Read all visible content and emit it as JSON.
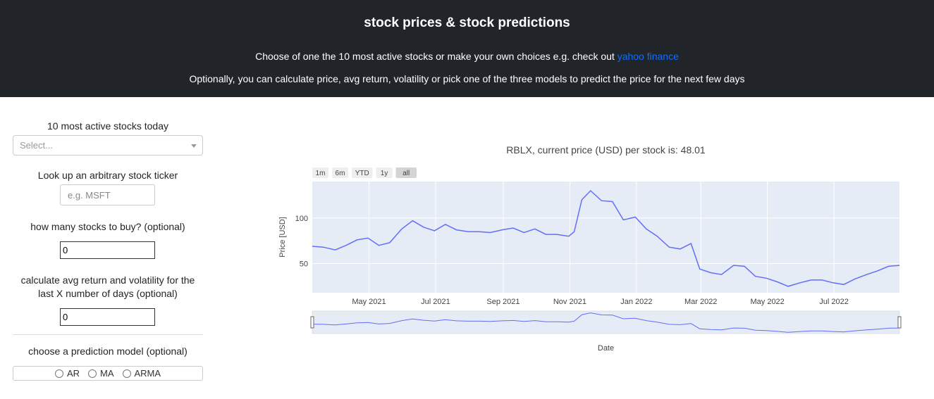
{
  "header": {
    "title": "stock prices & stock predictions",
    "line1_text": "Choose of one the 10 most active stocks or make your own choices e.g. check out",
    "line1_link": "yahoo finance",
    "line2": "Optionally, you can calculate price, avg return, volatility or pick one of the three models to predict the price for the next few days"
  },
  "sidebar": {
    "active_label": "10 most active stocks today",
    "select_placeholder": "Select...",
    "lookup_label": "Look up an arbitrary stock ticker",
    "ticker_placeholder": "e.g. MSFT",
    "buy_label": "how many stocks to buy? (optional)",
    "buy_value": "0",
    "avg_label": "calculate avg return and volatility for the last X number of days (optional)",
    "avg_value": "0",
    "model_label": "choose a prediction model (optional)",
    "models": [
      "AR",
      "MA",
      "ARMA"
    ]
  },
  "chart_data": {
    "type": "line",
    "title": "RBLX, current price (USD) per stock is: 48.01",
    "xlabel": "Date",
    "ylabel": "Price [USD]",
    "range_buttons": [
      "1m",
      "6m",
      "YTD",
      "1y",
      "all"
    ],
    "active_range": "all",
    "x_ticks": [
      "May 2021",
      "Jul 2021",
      "Sep 2021",
      "Nov 2021",
      "Jan 2022",
      "Mar 2022",
      "May 2022",
      "Jul 2022"
    ],
    "y_ticks": [
      50,
      100
    ],
    "ylim": [
      18,
      140
    ],
    "grid": true,
    "line_color": "#636efa",
    "series": [
      {
        "x": [
          "2021-03-10",
          "2021-03-20",
          "2021-03-31",
          "2021-04-10",
          "2021-04-20",
          "2021-04-30",
          "2021-05-10",
          "2021-05-20",
          "2021-05-31",
          "2021-06-10",
          "2021-06-20",
          "2021-06-30",
          "2021-07-10",
          "2021-07-20",
          "2021-07-31",
          "2021-08-10",
          "2021-08-20",
          "2021-08-31",
          "2021-09-10",
          "2021-09-20",
          "2021-09-30",
          "2021-10-10",
          "2021-10-20",
          "2021-10-31",
          "2021-11-05",
          "2021-11-12",
          "2021-11-20",
          "2021-11-30",
          "2021-12-10",
          "2021-12-20",
          "2021-12-31",
          "2022-01-10",
          "2022-01-20",
          "2022-01-31",
          "2022-02-10",
          "2022-02-20",
          "2022-02-28",
          "2022-03-10",
          "2022-03-20",
          "2022-03-31",
          "2022-04-10",
          "2022-04-20",
          "2022-04-30",
          "2022-05-10",
          "2022-05-20",
          "2022-05-31",
          "2022-06-10",
          "2022-06-20",
          "2022-06-30",
          "2022-07-10",
          "2022-07-20",
          "2022-07-31",
          "2022-08-10",
          "2022-08-20",
          "2022-08-30"
        ],
        "y": [
          69,
          68,
          65,
          70,
          76,
          78,
          70,
          73,
          88,
          97,
          90,
          86,
          93,
          87,
          85,
          85,
          84,
          87,
          89,
          84,
          88,
          82,
          82,
          80,
          85,
          120,
          130,
          119,
          118,
          98,
          101,
          88,
          80,
          68,
          66,
          72,
          44,
          40,
          38,
          48,
          47,
          36,
          34,
          30,
          25,
          29,
          32,
          32,
          29,
          27,
          33,
          38,
          42,
          47,
          48.01
        ]
      }
    ]
  }
}
